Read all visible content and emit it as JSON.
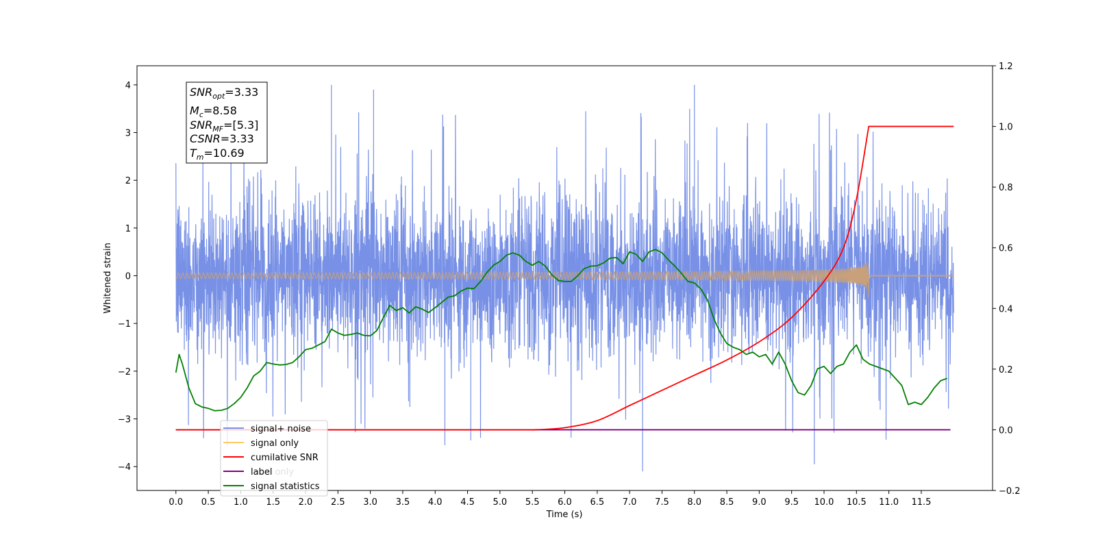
{
  "chart_data": {
    "type": "line",
    "xlabel": "Time (s)",
    "ylabel_left": "Whitened strain",
    "ylabel_right": "",
    "xlim": [
      -0.6,
      12.6
    ],
    "ylim_left": [
      -4.5,
      4.4
    ],
    "ylim_right": [
      -0.2,
      1.2
    ],
    "x_ticks": [
      0.0,
      0.5,
      1.0,
      1.5,
      2.0,
      2.5,
      3.0,
      3.5,
      4.0,
      4.5,
      5.0,
      5.5,
      6.0,
      6.5,
      7.0,
      7.5,
      8.0,
      8.5,
      9.0,
      9.5,
      10.0,
      10.5,
      11.0,
      11.5
    ],
    "x_tick_labels": [
      "0.0",
      "0.5",
      "1.0",
      "1.5",
      "2.0",
      "2.5",
      "3.0",
      "3.5",
      "4.0",
      "4.5",
      "5.0",
      "5.5",
      "6.0",
      "6.5",
      "7.0",
      "7.5",
      "8.0",
      "8.5",
      "9.0",
      "9.5",
      "10.0",
      "10.5",
      "11.0",
      "11.5"
    ],
    "y_left_ticks": [
      -4,
      -3,
      -2,
      -1,
      0,
      1,
      2,
      3,
      4
    ],
    "y_left_tick_labels": [
      "−4",
      "−3",
      "−2",
      "−1",
      "0",
      "1",
      "2",
      "3",
      "4"
    ],
    "y_right_ticks": [
      -0.2,
      0.0,
      0.2,
      0.4,
      0.6,
      0.8,
      1.0,
      1.2
    ],
    "y_right_tick_labels": [
      "−0.2",
      "0.0",
      "0.2",
      "0.4",
      "0.6",
      "0.8",
      "1.0",
      "1.2"
    ],
    "grid": false,
    "legend_position": "lower-left",
    "info_box": {
      "lines": [
        {
          "main": "SNR",
          "sub": "opt",
          "value": "=3.33"
        },
        {
          "main": "M",
          "sub": "c",
          "value": "=8.58"
        },
        {
          "main": "SNR",
          "sub": "MF",
          "value": "=[5.3]"
        },
        {
          "main": "CSNR",
          "sub": "",
          "value": "=3.33"
        },
        {
          "main": "T",
          "sub": "m",
          "value": "=10.69"
        }
      ]
    },
    "series": [
      {
        "name": "signal+ noise",
        "axis": "left",
        "color": "#7891e6",
        "style": "noise",
        "x_range": [
          0.0,
          12.0
        ],
        "typical_envelope": [
          -2.2,
          2.3
        ],
        "extremes": [
          {
            "x": 2.4,
            "y": 4.0
          },
          {
            "x": 3.05,
            "y": 3.9
          },
          {
            "x": 7.2,
            "y": -4.1
          },
          {
            "x": 8.0,
            "y": 4.0
          },
          {
            "x": 9.85,
            "y": -3.95
          },
          {
            "x": 4.15,
            "y": -3.55
          },
          {
            "x": 4.55,
            "y": -3.45
          }
        ]
      },
      {
        "name": "signal only",
        "axis": "left",
        "color": "#c8a07a",
        "style": "chirp",
        "x_range": [
          0.0,
          12.0
        ],
        "merger_time": 10.69,
        "peak_amplitude": 0.55
      },
      {
        "name": "cumilative SNR",
        "axis": "right",
        "color": "#ff0000",
        "x": [
          0.0,
          5.0,
          5.5,
          6.0,
          6.5,
          7.0,
          7.5,
          8.0,
          8.5,
          9.0,
          9.5,
          10.0,
          10.3,
          10.5,
          10.69,
          10.7,
          12.0
        ],
        "values": [
          0.0,
          0.0,
          0.0,
          0.007,
          0.03,
          0.08,
          0.13,
          0.18,
          0.23,
          0.29,
          0.37,
          0.49,
          0.6,
          0.76,
          1.0,
          1.0,
          1.0
        ]
      },
      {
        "name": "label",
        "axis": "right",
        "color": "#800080",
        "x": [
          0.0,
          11.95
        ],
        "values": [
          0.0,
          0.0
        ]
      },
      {
        "name": "signal statistics",
        "axis": "left",
        "color": "#008000",
        "x": [
          0.0,
          0.05,
          0.1,
          0.2,
          0.3,
          0.4,
          0.5,
          0.6,
          0.7,
          0.8,
          0.9,
          1.0,
          1.1,
          1.2,
          1.3,
          1.4,
          1.5,
          1.6,
          1.7,
          1.8,
          1.9,
          2.0,
          2.1,
          2.2,
          2.3,
          2.4,
          2.5,
          2.6,
          2.7,
          2.8,
          2.9,
          3.0,
          3.1,
          3.2,
          3.3,
          3.4,
          3.5,
          3.6,
          3.7,
          3.8,
          3.9,
          4.0,
          4.1,
          4.2,
          4.3,
          4.4,
          4.5,
          4.6,
          4.7,
          4.8,
          4.9,
          5.0,
          5.1,
          5.2,
          5.3,
          5.4,
          5.5,
          5.6,
          5.7,
          5.8,
          5.9,
          6.0,
          6.1,
          6.2,
          6.3,
          6.4,
          6.5,
          6.6,
          6.7,
          6.8,
          6.9,
          7.0,
          7.1,
          7.2,
          7.3,
          7.4,
          7.5,
          7.6,
          7.7,
          7.8,
          7.9,
          8.0,
          8.1,
          8.2,
          8.3,
          8.4,
          8.5,
          8.6,
          8.7,
          8.8,
          8.9,
          9.0,
          9.1,
          9.2,
          9.3,
          9.4,
          9.5,
          9.6,
          9.7,
          9.8,
          9.9,
          10.0,
          10.1,
          10.2,
          10.3,
          10.4,
          10.5,
          10.6,
          10.7,
          10.8,
          10.9,
          11.0,
          11.1,
          11.2,
          11.3,
          11.4,
          11.5,
          11.6,
          11.7,
          11.8,
          11.9
        ],
        "values": [
          -2.03,
          -1.65,
          -1.85,
          -2.35,
          -2.68,
          -2.75,
          -2.78,
          -2.83,
          -2.82,
          -2.78,
          -2.68,
          -2.55,
          -2.35,
          -2.1,
          -2.0,
          -1.82,
          -1.85,
          -1.87,
          -1.86,
          -1.82,
          -1.7,
          -1.55,
          -1.52,
          -1.45,
          -1.38,
          -1.12,
          -1.2,
          -1.25,
          -1.23,
          -1.2,
          -1.25,
          -1.26,
          -1.15,
          -0.88,
          -0.62,
          -0.73,
          -0.67,
          -0.78,
          -0.65,
          -0.7,
          -0.77,
          -0.67,
          -0.56,
          -0.45,
          -0.42,
          -0.32,
          -0.26,
          -0.27,
          -0.12,
          0.07,
          0.22,
          0.3,
          0.43,
          0.48,
          0.43,
          0.3,
          0.22,
          0.3,
          0.2,
          0.02,
          -0.1,
          -0.12,
          -0.12,
          0.0,
          0.15,
          0.2,
          0.21,
          0.27,
          0.37,
          0.38,
          0.25,
          0.5,
          0.45,
          0.3,
          0.5,
          0.55,
          0.48,
          0.33,
          0.2,
          0.05,
          -0.12,
          -0.15,
          -0.28,
          -0.5,
          -0.9,
          -1.2,
          -1.42,
          -1.5,
          -1.55,
          -1.65,
          -1.6,
          -1.7,
          -1.65,
          -1.85,
          -1.6,
          -1.85,
          -2.2,
          -2.45,
          -2.5,
          -2.3,
          -1.95,
          -1.9,
          -2.05,
          -1.9,
          -1.85,
          -1.6,
          -1.45,
          -1.75,
          -1.85,
          -1.9,
          -1.95,
          -2.0,
          -2.15,
          -2.3,
          -2.7,
          -2.65,
          -2.7,
          -2.55,
          -2.35,
          -2.2,
          -2.15
        ]
      }
    ]
  },
  "legend_items": [
    {
      "label": "signal+ noise",
      "color": "#7891e6"
    },
    {
      "label": "signal only",
      "color": "#ffc966"
    },
    {
      "label": "cumilative SNR",
      "color": "#ff0000"
    },
    {
      "label": "label",
      "color": "#800080"
    },
    {
      "label": "signal statistics",
      "color": "#008000"
    }
  ],
  "ghost_label": "label only"
}
